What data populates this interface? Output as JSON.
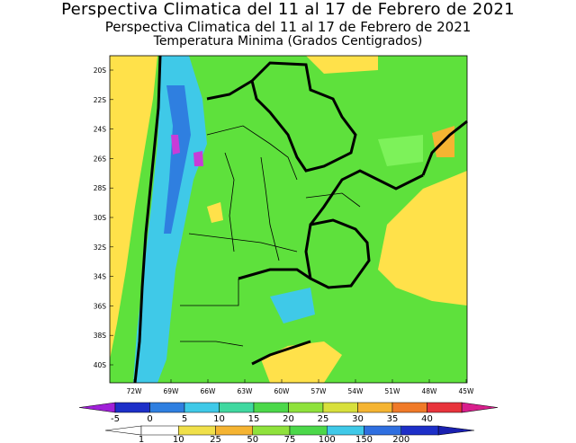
{
  "titles": {
    "line1": "Perspectiva Climatica del 11 al 17 de Febrero de 2021",
    "line2": "Perspectiva Climatica del 11 al 17 de Febrero de 2021",
    "line3": "Temperatura Minima (Grados Centigrados)"
  },
  "map": {
    "latitude_labels": [
      "20S",
      "22S",
      "24S",
      "26S",
      "28S",
      "30S",
      "32S",
      "34S",
      "36S",
      "38S",
      "40S"
    ],
    "longitude_labels": [
      "72W",
      "69W",
      "66W",
      "63W",
      "60W",
      "57W",
      "54W",
      "51W",
      "48W",
      "45W"
    ],
    "colors": {
      "land_green": "#5ee13c",
      "light_green": "#7df25a",
      "yellow": "#ffe14a",
      "orange": "#f5b432",
      "cyan": "#3fc9e8",
      "blue": "#2f7fe0",
      "magenta": "#c83cd8"
    }
  },
  "colorbar_temperature": {
    "labels": [
      "-5",
      "0",
      "5",
      "10",
      "15",
      "20",
      "25",
      "30",
      "35",
      "40"
    ],
    "colors": [
      "#1d2fc8",
      "#2f7fe0",
      "#3fc9e8",
      "#40d8a0",
      "#4cd84a",
      "#8fe23c",
      "#d8e03c",
      "#f5b432",
      "#f07a28",
      "#e8343c"
    ],
    "end_low": "#a020d8",
    "end_high": "#d81e8c"
  },
  "colorbar_precip": {
    "labels": [
      "1",
      "10",
      "25",
      "50",
      "75",
      "100",
      "150",
      "200"
    ],
    "colors": [
      "#ffffff",
      "#f0e04a",
      "#f5b432",
      "#8fe23c",
      "#4cd84a",
      "#3fc9e8",
      "#2f6fe0",
      "#1d2fc8"
    ]
  }
}
